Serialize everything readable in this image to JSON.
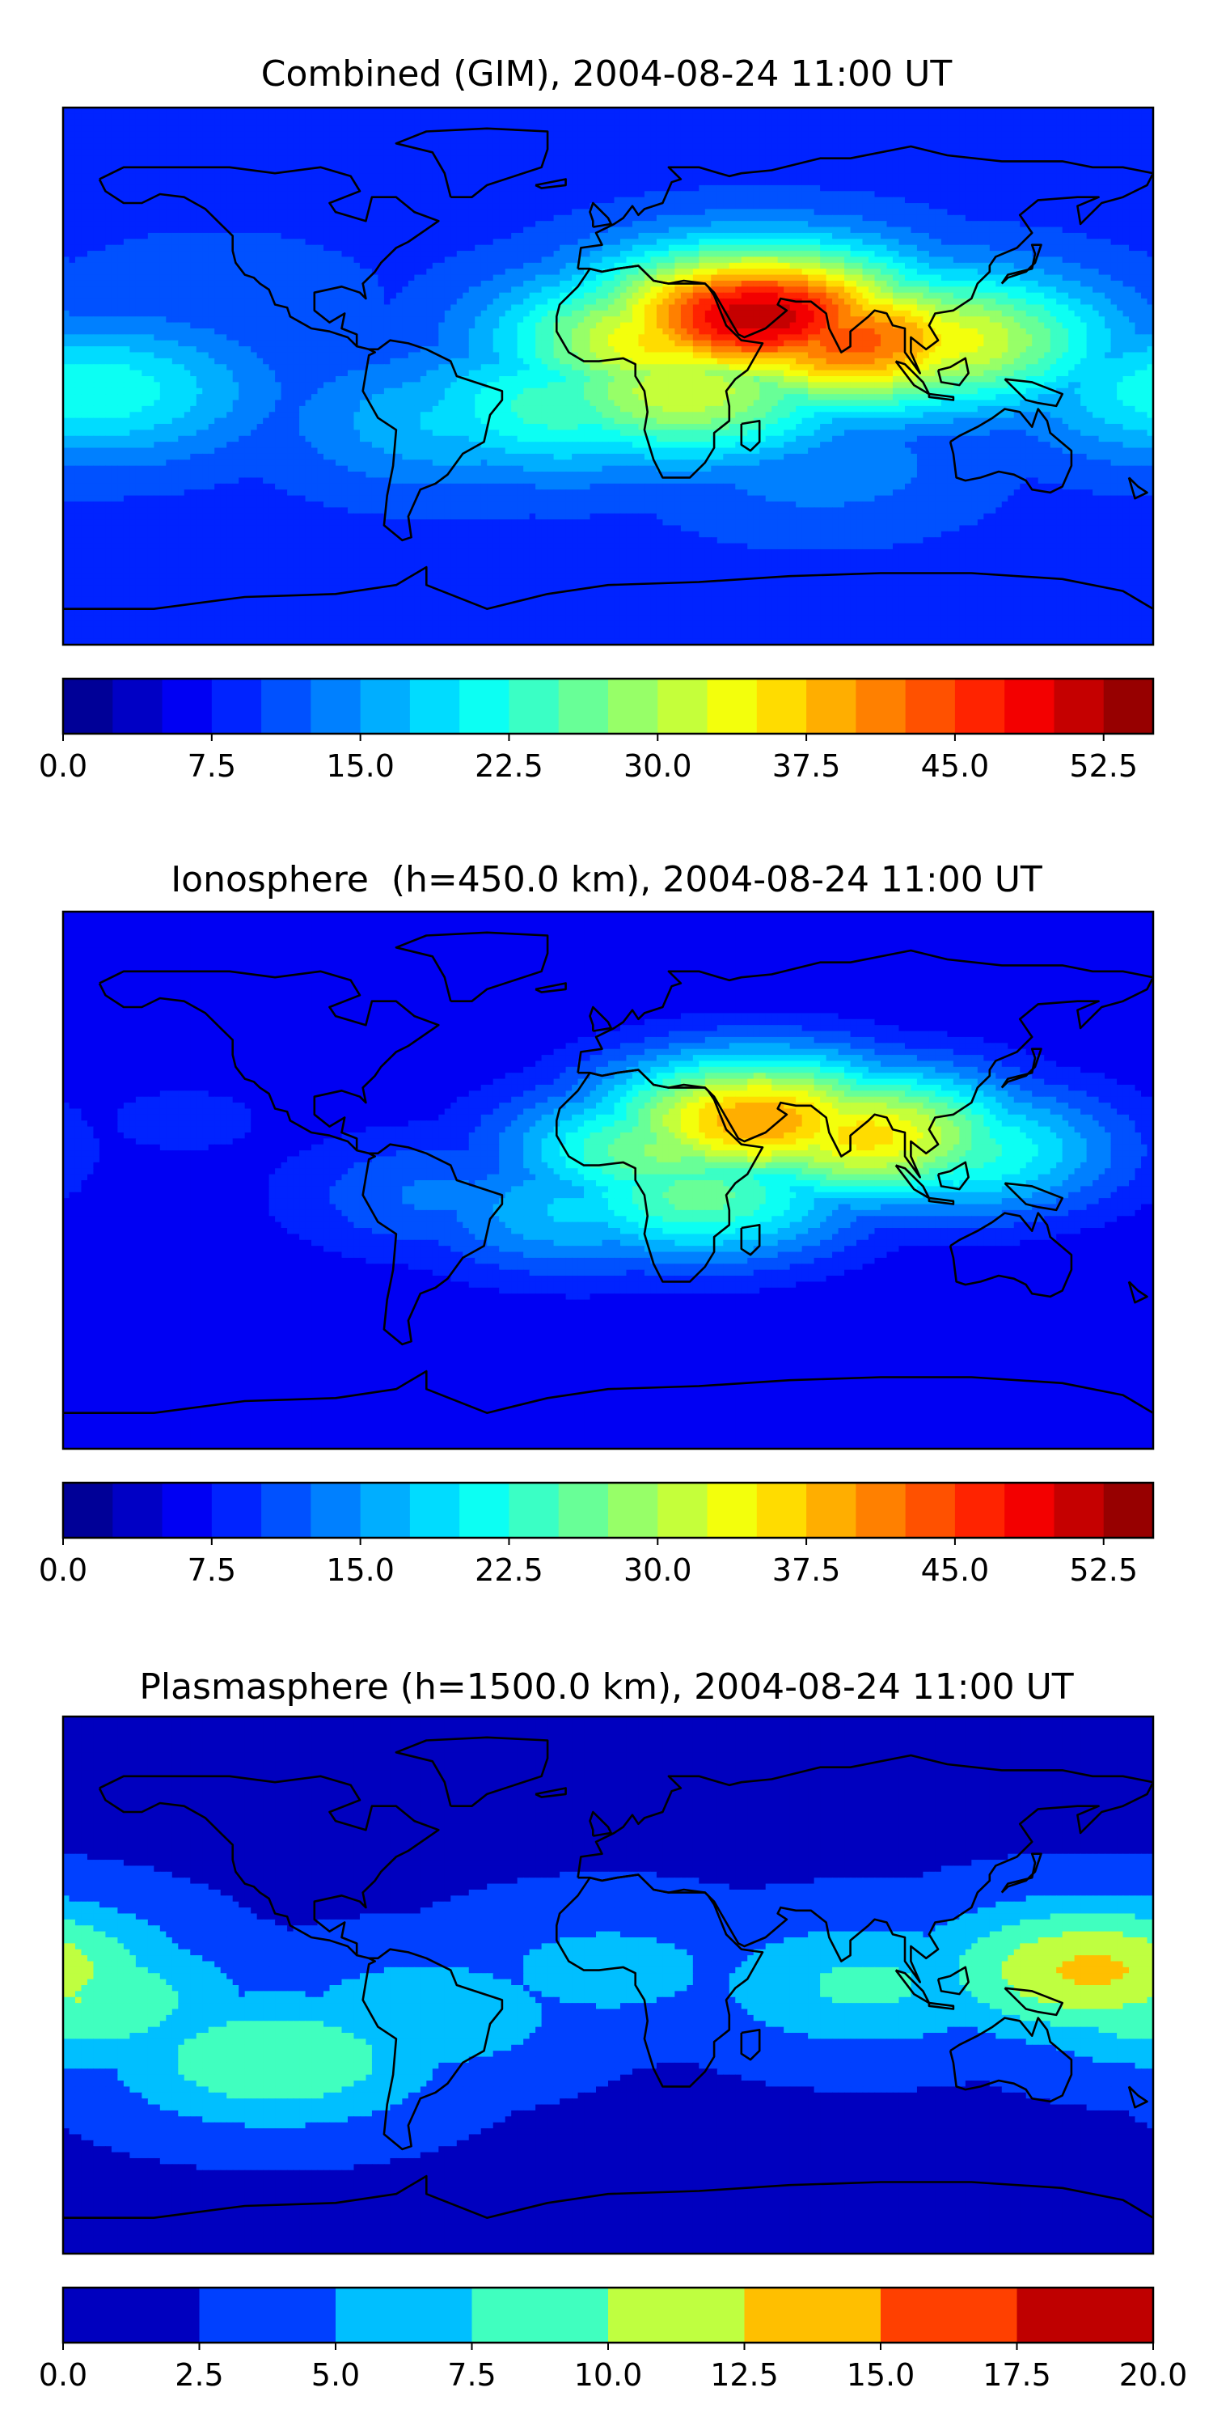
{
  "chart_data": [
    {
      "type": "heatmap",
      "title": "Combined (GIM), 2004-08-24 11:00 UT",
      "colormap": "jet",
      "levels": [
        0.0,
        2.5,
        5.0,
        7.5,
        10.0,
        12.5,
        15.0,
        17.5,
        20.0,
        22.5,
        25.0,
        27.5,
        30.0,
        32.5,
        35.0,
        37.5,
        40.0,
        42.5,
        45.0,
        47.5,
        50.0,
        52.5,
        55.0
      ],
      "colorbar_ticks": [
        "0.0",
        "7.5",
        "15.0",
        "22.5",
        "30.0",
        "37.5",
        "45.0",
        "52.5"
      ],
      "colorbar_range": [
        0,
        55
      ],
      "background_value": 9,
      "features": [
        {
          "name": "peak over Arabia / north Africa / India",
          "lon": 50,
          "lat": 20,
          "value": 52
        },
        {
          "name": "south Asia crest",
          "lon": 80,
          "lat": 12,
          "value": 44
        },
        {
          "name": "north equatorial Africa",
          "lon": 20,
          "lat": 12,
          "value": 36
        },
        {
          "name": "southern Africa crest",
          "lon": 25,
          "lat": -5,
          "value": 32
        },
        {
          "name": "southeast Asia",
          "lon": 110,
          "lat": 12,
          "value": 34
        },
        {
          "name": "south Atlantic",
          "lon": -15,
          "lat": -10,
          "value": 24
        },
        {
          "name": "eastern Pacific",
          "lon": -170,
          "lat": -5,
          "value": 22
        },
        {
          "name": "South America",
          "lon": -50,
          "lat": -15,
          "value": 18
        },
        {
          "name": "southern Indian Ocean",
          "lon": 70,
          "lat": -30,
          "value": 14
        },
        {
          "name": "north Pacific",
          "lon": -130,
          "lat": 25,
          "value": 12
        }
      ]
    },
    {
      "type": "heatmap",
      "title": "Ionosphere  (h=450.0 km), 2004-08-24 11:00 UT",
      "colormap": "jet",
      "levels": [
        0.0,
        2.5,
        5.0,
        7.5,
        10.0,
        12.5,
        15.0,
        17.5,
        20.0,
        22.5,
        25.0,
        27.5,
        30.0,
        32.5,
        35.0,
        37.5,
        40.0,
        42.5,
        45.0,
        47.5,
        50.0,
        52.5,
        55.0
      ],
      "colorbar_ticks": [
        "0.0",
        "7.5",
        "15.0",
        "22.5",
        "30.0",
        "37.5",
        "45.0",
        "52.5"
      ],
      "colorbar_range": [
        0,
        55
      ],
      "background_value": 5,
      "features": [
        {
          "name": "peak over Arabia",
          "lon": 50,
          "lat": 20,
          "value": 40
        },
        {
          "name": "south Asia crest",
          "lon": 85,
          "lat": 15,
          "value": 36
        },
        {
          "name": "north equatorial Africa",
          "lon": 20,
          "lat": 10,
          "value": 28
        },
        {
          "name": "southern Africa crest",
          "lon": 30,
          "lat": -5,
          "value": 26
        },
        {
          "name": "southeast Asia",
          "lon": 115,
          "lat": 10,
          "value": 24
        },
        {
          "name": "south Atlantic",
          "lon": -10,
          "lat": -10,
          "value": 18
        },
        {
          "name": "South America",
          "lon": -55,
          "lat": -5,
          "value": 13
        },
        {
          "name": "north Pacific",
          "lon": -140,
          "lat": 20,
          "value": 8
        }
      ]
    },
    {
      "type": "heatmap",
      "title": "Plasmasphere (h=1500.0 km), 2004-08-24 11:00 UT",
      "colormap": "jet",
      "levels": [
        0.0,
        2.5,
        5.0,
        7.5,
        10.0,
        12.5,
        15.0,
        17.5,
        20.0
      ],
      "colorbar_ticks": [
        "0.0",
        "2.5",
        "5.0",
        "7.5",
        "10.0",
        "12.5",
        "15.0",
        "17.5",
        "20.0"
      ],
      "colorbar_range": [
        0,
        20
      ],
      "background_value": 2,
      "features": [
        {
          "name": "tropical band",
          "lon": 0,
          "lat": 5,
          "value": 6
        },
        {
          "name": "western Pacific maximum",
          "lon": 160,
          "lat": 5,
          "value": 13
        },
        {
          "name": "eastern Pacific",
          "lon": -175,
          "lat": -5,
          "value": 10
        },
        {
          "name": "south Pacific spot",
          "lon": -110,
          "lat": -25,
          "value": 10
        },
        {
          "name": "Indian Ocean",
          "lon": 85,
          "lat": 0,
          "value": 8
        },
        {
          "name": "South America",
          "lon": -60,
          "lat": -10,
          "value": 7
        }
      ]
    }
  ]
}
